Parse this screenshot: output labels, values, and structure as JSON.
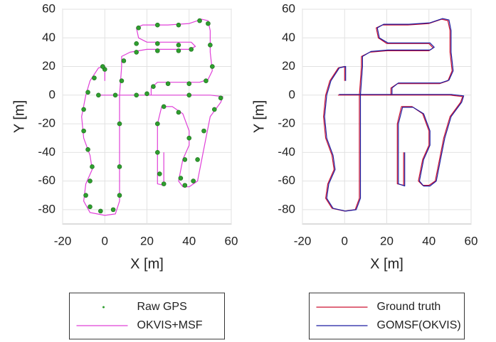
{
  "chart_data": [
    {
      "type": "line",
      "xlabel": "X [m]",
      "ylabel": "Y [m]",
      "xlim": [
        -20,
        60
      ],
      "ylim": [
        -90,
        60
      ],
      "xticks": [
        -20,
        0,
        20,
        40,
        60
      ],
      "yticks": [
        -80,
        -60,
        -40,
        -20,
        0,
        20,
        40,
        60
      ],
      "grid": true,
      "legend": "below",
      "series": [
        {
          "name": "Raw GPS",
          "type": "scatter",
          "color": "#2e9e2e",
          "x": [
            0,
            -1,
            -5,
            -8,
            -10,
            -10,
            -8,
            -6,
            -7,
            -9,
            -7,
            -2,
            4,
            7,
            7,
            7,
            8,
            9,
            15,
            25,
            35,
            41,
            35,
            25,
            15,
            16,
            25,
            35,
            45,
            49,
            50,
            51,
            48,
            40,
            30,
            23,
            15,
            5,
            -3,
            20,
            40,
            55,
            52,
            47,
            44,
            42,
            38,
            36,
            38,
            40,
            35,
            28,
            25,
            25,
            26,
            28
          ],
          "y": [
            18,
            20,
            12,
            2,
            -10,
            -25,
            -38,
            -50,
            -60,
            -70,
            -78,
            -81,
            -80,
            -70,
            -50,
            -20,
            10,
            24,
            30,
            31,
            31,
            32,
            35,
            36,
            36,
            47,
            49,
            49,
            52,
            50,
            35,
            20,
            10,
            8,
            8,
            6,
            0,
            0,
            0,
            1,
            0,
            -2,
            -10,
            -25,
            -45,
            -60,
            -63,
            -58,
            -45,
            -30,
            -12,
            -8,
            -20,
            -40,
            -55,
            -62
          ]
        },
        {
          "name": "OKVIS+MSF",
          "type": "line",
          "color": "#e040d8",
          "x": [
            0,
            0,
            -3,
            -7,
            -9,
            -11,
            -10,
            -7,
            -6,
            -9,
            -10,
            -7,
            0,
            5,
            7,
            7,
            7,
            8,
            8,
            12,
            20,
            30,
            40,
            43,
            41,
            30,
            20,
            16,
            15,
            18,
            30,
            40,
            46,
            49,
            50,
            50,
            51,
            49,
            45,
            35,
            25,
            22,
            22,
            10,
            0,
            -3,
            10,
            30,
            50,
            56,
            55,
            50,
            48,
            46,
            44,
            40,
            37,
            35,
            37,
            40,
            40,
            37,
            32,
            27,
            25,
            25,
            25,
            28,
            28
          ],
          "y": [
            10,
            20,
            19,
            10,
            0,
            -15,
            -30,
            -42,
            -52,
            -62,
            -74,
            -82,
            -84,
            -83,
            -74,
            -40,
            0,
            20,
            27,
            30,
            32,
            32,
            32,
            34,
            37,
            37,
            37,
            40,
            47,
            49,
            49,
            50,
            53,
            52,
            45,
            30,
            17,
            11,
            9,
            9,
            9,
            5,
            0,
            0,
            0,
            0,
            0,
            0,
            0,
            -1,
            -5,
            -15,
            -30,
            -45,
            -60,
            -64,
            -64,
            -60,
            -45,
            -35,
            -25,
            -13,
            -8,
            -8,
            -20,
            -40,
            -62,
            -63,
            -40
          ]
        }
      ]
    },
    {
      "type": "line",
      "xlabel": "X [m]",
      "ylabel": "Y [m]",
      "xlim": [
        -20,
        60
      ],
      "ylim": [
        -90,
        60
      ],
      "xticks": [
        -20,
        0,
        20,
        40,
        60
      ],
      "yticks": [
        -80,
        -60,
        -40,
        -20,
        0,
        20,
        40,
        60
      ],
      "grid": true,
      "legend": "below",
      "series": [
        {
          "name": "Ground truth",
          "type": "line",
          "color": "#cc1030",
          "x": [
            0,
            0,
            -3,
            -7,
            -9,
            -10,
            -9,
            -6,
            -5,
            -8,
            -9,
            -6,
            0,
            5,
            7,
            7,
            7,
            8,
            8,
            12,
            20,
            30,
            40,
            42,
            40,
            30,
            20,
            16,
            15,
            18,
            30,
            40,
            46,
            49,
            50,
            50,
            51,
            49,
            45,
            35,
            25,
            22,
            22,
            10,
            0,
            -3,
            10,
            30,
            50,
            56,
            55,
            50,
            47,
            45,
            43,
            40,
            37,
            35,
            37,
            40,
            40,
            37,
            32,
            27,
            25,
            25,
            25,
            28,
            28
          ],
          "y": [
            10,
            20,
            19,
            10,
            0,
            -15,
            -30,
            -42,
            -52,
            -62,
            -72,
            -79,
            -81,
            -80,
            -72,
            -40,
            0,
            20,
            27,
            30,
            31,
            31,
            31,
            33,
            36,
            36,
            36,
            40,
            47,
            49,
            49,
            50,
            53,
            52,
            45,
            30,
            17,
            10,
            8,
            8,
            8,
            5,
            0,
            0,
            0,
            0,
            0,
            0,
            0,
            -1,
            -5,
            -15,
            -30,
            -45,
            -60,
            -63,
            -63,
            -60,
            -45,
            -35,
            -25,
            -13,
            -8,
            -8,
            -20,
            -40,
            -62,
            -63,
            -40
          ]
        },
        {
          "name": "GOMSF(OKVIS)",
          "type": "line",
          "color": "#1c1ca0",
          "x": [
            0.5,
            0.5,
            -2.5,
            -6.5,
            -8.5,
            -9.5,
            -8.5,
            -5.5,
            -4.5,
            -7.5,
            -8.5,
            -5.5,
            0.5,
            5.5,
            7.5,
            7.5,
            7.5,
            8.5,
            8.5,
            12.5,
            20.5,
            30.5,
            40.5,
            42.5,
            40.5,
            30.5,
            20.5,
            16.5,
            15.5,
            18.5,
            30.5,
            40.5,
            46.5,
            49.5,
            50.5,
            50.5,
            51.5,
            49.5,
            45.5,
            35.5,
            25.5,
            22.5,
            22.5,
            10.5,
            0.5,
            -2.5,
            10.5,
            30.5,
            50.5,
            56.5,
            55.5,
            50.5,
            47.5,
            45.5,
            43.5,
            40.5,
            37.5,
            35.5,
            37.5,
            40.5,
            40.5,
            37.5,
            32.5,
            27.5,
            25.5,
            25.5,
            25.5,
            28.5,
            28.5
          ],
          "y": [
            10,
            20,
            19,
            10,
            0,
            -15,
            -30,
            -42,
            -52,
            -62,
            -72,
            -79,
            -81,
            -80,
            -72,
            -40,
            0,
            20,
            27,
            30.5,
            31.5,
            31.5,
            31.5,
            33.5,
            36.5,
            36.5,
            36.5,
            40,
            47,
            49.5,
            49.5,
            50.5,
            53.5,
            52.5,
            45,
            30,
            17,
            10.5,
            8.5,
            8.5,
            8.5,
            5,
            0.5,
            0.5,
            0.5,
            0.5,
            0.5,
            0.5,
            0.5,
            -0.5,
            -5,
            -15,
            -30,
            -45,
            -60,
            -63.5,
            -63.5,
            -60,
            -45,
            -35,
            -25,
            -13,
            -8.5,
            -8.5,
            -20,
            -40,
            -62,
            -63.5,
            -40
          ]
        }
      ]
    }
  ]
}
